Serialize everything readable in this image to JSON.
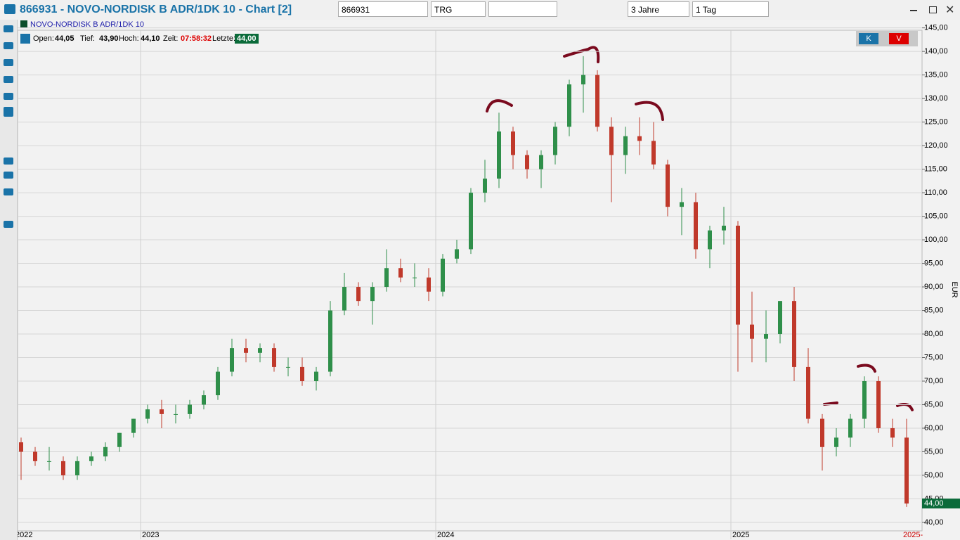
{
  "header": {
    "title": "866931 - NOVO-NORDISK B ADR/1DK 10 - Chart [2]"
  },
  "toolbar": {
    "symbol": "866931",
    "exchange": "TRG",
    "range": "3 Jahre",
    "interval": "1 Tag"
  },
  "info": {
    "instrument": "NOVO-NORDISK B ADR/1DK 10",
    "open_label": "Open:",
    "open": "44,05",
    "low_label": "Tief:",
    "low": "43,90",
    "high_label": "Hoch:",
    "high": "44,10",
    "time_label": "Zeit:",
    "time": "07:58:32",
    "last_label": "Letzte:",
    "last": "44,00",
    "buy": "K",
    "sell": "V"
  },
  "chart_data": {
    "type": "candlestick",
    "y_unit": "EUR",
    "last_price_label": "44,00",
    "crosshair_x_label": "2025-",
    "categories": [
      "2022",
      null,
      null,
      null,
      null,
      null,
      null,
      null,
      null,
      "2023",
      null,
      null,
      null,
      null,
      null,
      null,
      null,
      null,
      null,
      null,
      null,
      null,
      null,
      null,
      null,
      null,
      null,
      null,
      null,
      null,
      "2024",
      null,
      null,
      null,
      null,
      null,
      null,
      null,
      null,
      null,
      null,
      null,
      null,
      null,
      null,
      null,
      null,
      null,
      null,
      null,
      null,
      "2025",
      null,
      null,
      null,
      null,
      null,
      null,
      null,
      null,
      null,
      null,
      null,
      null
    ],
    "open": [
      57,
      55,
      53,
      53,
      50,
      53,
      54,
      56,
      59,
      62,
      64,
      63,
      63,
      65,
      67,
      72,
      77,
      76,
      77,
      73,
      73,
      70,
      72,
      85,
      90,
      87,
      90,
      94,
      92,
      92,
      89,
      96,
      98,
      110,
      113,
      123,
      118,
      115,
      118,
      124,
      133,
      135,
      124,
      118,
      122,
      121,
      116,
      107,
      108,
      98,
      102,
      103,
      82,
      79,
      80,
      87,
      73,
      62,
      56,
      58,
      62,
      70,
      60,
      58
    ],
    "high": [
      58,
      56,
      56,
      54,
      54,
      55,
      57,
      59,
      62,
      65,
      66,
      65,
      66,
      68,
      73,
      79,
      79,
      78,
      78,
      75,
      75,
      73,
      87,
      93,
      91,
      91,
      98,
      96,
      95,
      94,
      97,
      100,
      111,
      117,
      127,
      124,
      119,
      119,
      125,
      134,
      139,
      136,
      126,
      124,
      126,
      125,
      117,
      111,
      110,
      103,
      107,
      104,
      89,
      85,
      87,
      90,
      77,
      63,
      60,
      63,
      71,
      71,
      62,
      62
    ],
    "low": [
      49,
      52,
      51,
      49,
      49,
      52,
      53,
      55,
      58,
      61,
      60,
      61,
      62,
      64,
      66,
      71,
      74,
      74,
      72,
      71,
      69,
      68,
      71,
      84,
      86,
      82,
      89,
      91,
      90,
      87,
      88,
      95,
      97,
      108,
      111,
      115,
      113,
      111,
      116,
      122,
      127,
      123,
      108,
      114,
      118,
      115,
      105,
      101,
      96,
      94,
      99,
      72,
      74,
      74,
      78,
      70,
      61,
      51,
      54,
      56,
      60,
      59,
      56,
      43.3
    ],
    "close": [
      55,
      53,
      53,
      50,
      53,
      54,
      56,
      59,
      62,
      64,
      63,
      63,
      65,
      67,
      72,
      77,
      76,
      77,
      73,
      73,
      70,
      72,
      85,
      90,
      87,
      90,
      94,
      92,
      92,
      89,
      96,
      98,
      110,
      113,
      123,
      118,
      115,
      118,
      124,
      133,
      135,
      124,
      118,
      122,
      121,
      116,
      107,
      108,
      98,
      102,
      103,
      82,
      79,
      80,
      87,
      73,
      62,
      56,
      58,
      62,
      70,
      60,
      58,
      44
    ],
    "up_color": "#2f8f4a",
    "down_color": "#c0392b",
    "ylim": [
      38.2,
      144.5
    ],
    "yticks": [
      {
        "value": 40,
        "label": "40,00"
      },
      {
        "value": 45,
        "label": "45,00"
      },
      {
        "value": 50,
        "label": "50,00"
      },
      {
        "value": 55,
        "label": "55,00"
      },
      {
        "value": 60,
        "label": "60,00"
      },
      {
        "value": 65,
        "label": "65,00"
      },
      {
        "value": 70,
        "label": "70,00"
      },
      {
        "value": 75,
        "label": "75,00"
      },
      {
        "value": 80,
        "label": "80,00"
      },
      {
        "value": 85,
        "label": "85,00"
      },
      {
        "value": 90,
        "label": "90,00"
      },
      {
        "value": 95,
        "label": "95,00"
      },
      {
        "value": 100,
        "label": "100,00"
      },
      {
        "value": 105,
        "label": "105,00"
      },
      {
        "value": 110,
        "label": "110,00"
      },
      {
        "value": 115,
        "label": "115,00"
      },
      {
        "value": 120,
        "label": "120,00"
      },
      {
        "value": 125,
        "label": "125,00"
      },
      {
        "value": 130,
        "label": "130,00"
      },
      {
        "value": 135,
        "label": "135,00"
      },
      {
        "value": 140,
        "label": "140,00"
      },
      {
        "value": 145,
        "label": "145,00"
      }
    ],
    "grid": true
  }
}
